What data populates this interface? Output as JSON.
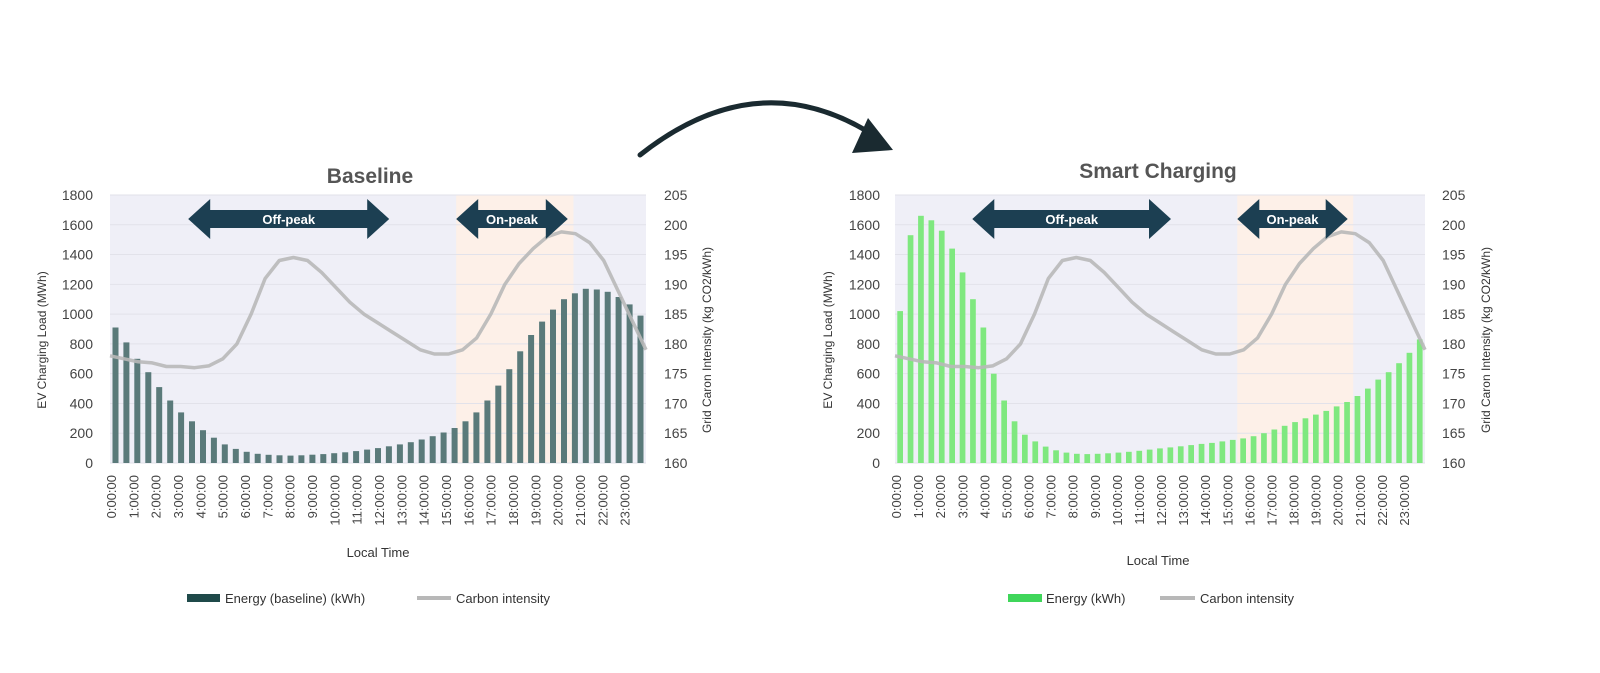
{
  "colors": {
    "baseline_bar": "#5a7a7a",
    "baseline_bar_legend": "#1f4a4a",
    "smart_bar": "#7fe87f",
    "smart_bar_legend": "#3fd65a",
    "carbon_line": "#b8b8b8",
    "arrow_fill": "#1c3f52",
    "offpeak_bg": "#efeff7",
    "onpeak_bg": "#fdf0e8",
    "axis_text": "#444444",
    "title_text": "#555555"
  },
  "chart_data": [
    {
      "type": "bar",
      "title": "Baseline",
      "xlabel": "Local Time",
      "ylabel": "EV Charging Load (MWh)",
      "y2label": "Grid Caron Intensity (kg CO2/kWh)",
      "ylim": [
        0,
        1800
      ],
      "yticks": [
        0,
        200,
        400,
        600,
        800,
        1000,
        1200,
        1400,
        1600,
        1800
      ],
      "y2lim": [
        160,
        205
      ],
      "y2ticks": [
        160,
        165,
        170,
        175,
        180,
        185,
        190,
        195,
        200,
        205
      ],
      "hour_labels": [
        "0:00:00",
        "1:00:00",
        "2:00:00",
        "3:00:00",
        "4:00:00",
        "5:00:00",
        "6:00:00",
        "7:00:00",
        "8:00:00",
        "9:00:00",
        "10:00:00",
        "11:00:00",
        "12:00:00",
        "13:00:00",
        "14:00:00",
        "15:00:00",
        "16:00:00",
        "17:00:00",
        "18:00:00",
        "19:00:00",
        "20:00:00",
        "21:00:00",
        "22:00:00",
        "23:00:00"
      ],
      "bars_per_hour": 2,
      "offpeak_label": "Off-peak",
      "onpeak_label": "On-peak",
      "offpeak_range": [
        3.5,
        12.5
      ],
      "onpeak_range": [
        15.5,
        20.5
      ],
      "onpeak_shade": [
        15.5,
        20.75
      ],
      "series": [
        {
          "name": "Energy (baseline) (kWh)",
          "type": "bar",
          "values": [
            910,
            810,
            700,
            610,
            510,
            420,
            340,
            280,
            220,
            170,
            125,
            95,
            75,
            62,
            55,
            52,
            50,
            52,
            56,
            60,
            66,
            72,
            80,
            90,
            100,
            112,
            125,
            140,
            158,
            180,
            205,
            235,
            280,
            340,
            420,
            520,
            630,
            750,
            860,
            950,
            1030,
            1100,
            1140,
            1170,
            1165,
            1150,
            1115,
            1065,
            990
          ]
        },
        {
          "name": "Carbon intensity",
          "type": "line",
          "axis": "y2",
          "values": [
            178,
            177.5,
            177,
            176.8,
            176.2,
            176.2,
            176,
            176.3,
            177.5,
            180,
            185,
            191,
            194,
            194.5,
            194,
            192,
            189.5,
            187,
            185,
            183.5,
            182,
            180.5,
            179,
            178.3,
            178.3,
            179,
            181,
            185,
            190,
            193.5,
            196,
            198,
            198.8,
            198.5,
            197,
            194,
            189,
            184,
            179
          ]
        }
      ]
    },
    {
      "type": "bar",
      "title": "Smart Charging",
      "xlabel": "Local Time",
      "ylabel": "EV Charging Load (MWh)",
      "y2label": "Grid Caron Intensity (kg CO2/kWh)",
      "ylim": [
        0,
        1800
      ],
      "yticks": [
        0,
        200,
        400,
        600,
        800,
        1000,
        1200,
        1400,
        1600,
        1800
      ],
      "y2lim": [
        160,
        205
      ],
      "y2ticks": [
        160,
        165,
        170,
        175,
        180,
        185,
        190,
        195,
        200,
        205
      ],
      "hour_labels": [
        "0:00:00",
        "1:00:00",
        "2:00:00",
        "3:00:00",
        "4:00:00",
        "5:00:00",
        "6:00:00",
        "7:00:00",
        "8:00:00",
        "9:00:00",
        "10:00:00",
        "11:00:00",
        "12:00:00",
        "13:00:00",
        "14:00:00",
        "15:00:00",
        "16:00:00",
        "17:00:00",
        "18:00:00",
        "19:00:00",
        "20:00:00",
        "21:00:00",
        "22:00:00",
        "23:00:00"
      ],
      "bars_per_hour": 2,
      "offpeak_label": "Off-peak",
      "onpeak_label": "On-peak",
      "offpeak_range": [
        3.5,
        12.5
      ],
      "onpeak_range": [
        15.5,
        20.5
      ],
      "onpeak_shade": [
        15.5,
        20.75
      ],
      "series": [
        {
          "name": "Energy (kWh)",
          "type": "bar",
          "values": [
            1020,
            1530,
            1660,
            1630,
            1560,
            1440,
            1280,
            1100,
            910,
            600,
            420,
            280,
            190,
            145,
            110,
            85,
            70,
            62,
            60,
            62,
            65,
            70,
            75,
            82,
            90,
            98,
            105,
            112,
            120,
            128,
            135,
            145,
            155,
            165,
            180,
            200,
            225,
            250,
            275,
            300,
            325,
            350,
            380,
            410,
            450,
            500,
            560,
            610,
            670,
            740,
            830
          ]
        },
        {
          "name": "Carbon intensity",
          "type": "line",
          "axis": "y2",
          "values": [
            178,
            177.5,
            177,
            176.8,
            176.2,
            176.2,
            176,
            176.3,
            177.5,
            180,
            185,
            191,
            194,
            194.5,
            194,
            192,
            189.5,
            187,
            185,
            183.5,
            182,
            180.5,
            179,
            178.3,
            178.3,
            179,
            181,
            185,
            190,
            193.5,
            196,
            198,
            198.8,
            198.5,
            197,
            194,
            189,
            184,
            179
          ]
        }
      ]
    }
  ]
}
